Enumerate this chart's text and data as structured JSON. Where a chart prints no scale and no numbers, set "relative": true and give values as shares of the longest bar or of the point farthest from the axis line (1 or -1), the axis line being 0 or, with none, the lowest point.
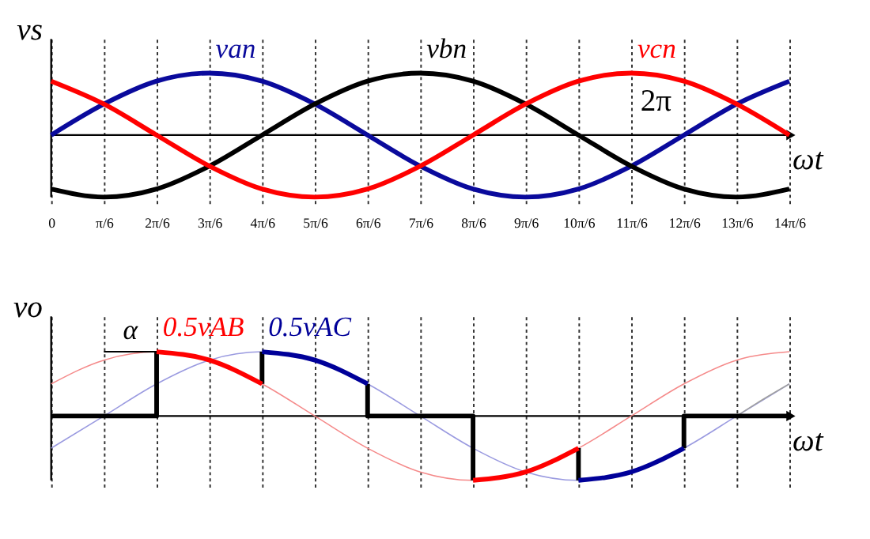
{
  "chart_data": [
    {
      "type": "line",
      "relative": true,
      "ylabel": "vs",
      "xlabel": "ωt",
      "x": [
        0,
        0.524,
        1.047,
        1.571,
        2.094,
        2.618,
        3.142,
        3.665,
        4.189,
        4.712,
        5.236,
        5.76,
        6.283,
        6.807,
        7.33
      ],
      "series": [
        {
          "name": "van",
          "color": "#0a0a9c",
          "values": [
            0,
            0.5,
            0.87,
            1,
            0.87,
            0.5,
            0,
            -0.5,
            -0.87,
            -1,
            -0.87,
            -0.5,
            0,
            0.5,
            0.87
          ]
        },
        {
          "name": "vbn",
          "color": "#000000",
          "values": [
            -0.87,
            -1,
            -0.87,
            -0.5,
            0,
            0.5,
            0.87,
            1,
            0.87,
            0.5,
            0,
            -0.5,
            -0.87,
            -1,
            -0.87
          ]
        },
        {
          "name": "vcn",
          "color": "#ff0000",
          "values": [
            0.87,
            0.5,
            0,
            -0.5,
            -0.87,
            -1,
            -0.87,
            -0.5,
            0,
            0.5,
            0.87,
            1,
            0.87,
            0.5,
            0
          ]
        }
      ],
      "xlim": [
        0,
        7.33
      ],
      "xticks": [
        0,
        {
          "value": 0.524,
          "label": "π/6"
        },
        {
          "value": 1.047,
          "label": "2π/6"
        },
        {
          "value": 1.571,
          "label": "3π/6"
        },
        {
          "value": 2.094,
          "label": "4π/6"
        },
        {
          "value": 2.618,
          "label": "5π/6"
        },
        {
          "value": 3.142,
          "label": "6π/6"
        },
        {
          "value": 3.665,
          "label": "7π/6"
        },
        {
          "value": 4.189,
          "label": "8π/6"
        },
        {
          "value": 4.712,
          "label": "9π/6"
        },
        {
          "value": 5.236,
          "label": "10π/6"
        },
        {
          "value": 5.76,
          "label": "11π/6"
        },
        {
          "value": 6.283,
          "label": "12π/6"
        },
        {
          "value": 6.807,
          "label": "13π/6"
        },
        {
          "value": 7.33,
          "label": "14π/6"
        }
      ],
      "tick_labels": "x",
      "grid": "x",
      "marker": "none",
      "line_style": "solid",
      "annotations": [
        {
          "text": "2π",
          "x": 6.283,
          "y": 0
        }
      ]
    },
    {
      "type": "line",
      "relative": true,
      "ylabel": "vo",
      "xlabel": "ωt",
      "x": [
        0,
        0.524,
        1.047,
        1.571,
        2.094,
        2.618,
        3.142,
        3.665,
        4.189,
        4.712,
        5.236,
        5.76,
        6.283,
        6.807,
        7.33
      ],
      "series": [
        {
          "color": "#f58a8a",
          "values": [
            0.5,
            0.87,
            1,
            0.87,
            0.5,
            0,
            -0.5,
            -0.87,
            -1,
            -0.87,
            -0.5,
            0,
            0.5,
            0.87,
            1
          ]
        },
        {
          "color": "#9a9ae0",
          "values": [
            -0.5,
            0,
            0.5,
            0.87,
            1,
            0.87,
            0.5,
            0,
            -0.5,
            -0.87,
            -1,
            -0.87,
            -0.5,
            0,
            0.5
          ]
        },
        {
          "color": "#a0a0a0",
          "x": [
            6.807,
            7.069,
            7.33
          ],
          "values": [
            0,
            0.26,
            0.5
          ]
        },
        {
          "color": "#000000",
          "x": [
            0,
            1.047,
            1.047,
            1.571,
            2.094,
            2.094,
            2.618,
            3.142,
            3.142,
            4.189,
            4.189,
            4.712,
            5.236,
            5.236,
            5.76,
            6.283,
            6.283,
            7.33
          ],
          "values": [
            0,
            0,
            1,
            null,
            0.5,
            1,
            null,
            0.5,
            0,
            0,
            -1,
            null,
            -0.5,
            -1,
            null,
            -0.5,
            0,
            0
          ]
        },
        {
          "name": "0.5vAB",
          "color": "#ff0000",
          "x": [
            1.047,
            1.571,
            2.094,
            null,
            4.189,
            4.712,
            5.236
          ],
          "values": [
            1,
            0.87,
            0.5,
            null,
            -1,
            -0.87,
            -0.5
          ]
        },
        {
          "name": "0.5vAC",
          "color": "#000099",
          "x": [
            2.094,
            2.618,
            3.142,
            null,
            5.236,
            5.76,
            6.283
          ],
          "values": [
            1,
            0.87,
            0.5,
            null,
            -1,
            -0.87,
            -0.5
          ]
        }
      ],
      "xlim": [
        0,
        7.33
      ],
      "xticks": [
        0,
        0.524,
        1.047,
        1.571,
        2.094,
        2.618,
        3.142,
        3.665,
        4.189,
        4.712,
        5.236,
        5.76,
        6.283,
        6.807,
        7.33
      ],
      "tick_labels": false,
      "grid": "x",
      "marker": "none",
      "line_style": "solid",
      "annotations": [
        {
          "text": "α",
          "x": 0.785,
          "y": 1
        }
      ]
    }
  ]
}
